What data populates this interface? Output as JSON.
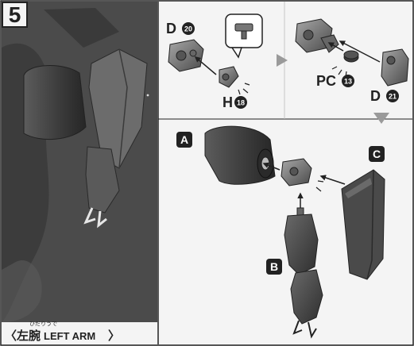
{
  "step": {
    "number": "5"
  },
  "title": {
    "ruby": "ひだりうで",
    "kanji": "左腕",
    "english": "LEFT ARM",
    "open_bracket": "〈",
    "close_bracket": "〉"
  },
  "parts": {
    "d20": {
      "letter": "D",
      "num": "20"
    },
    "h18": {
      "letter": "H",
      "num": "18"
    },
    "pc13": {
      "letter": "PC",
      "num": "13"
    },
    "d21": {
      "letter": "D",
      "num": "21"
    },
    "a": {
      "letter": "A"
    },
    "b": {
      "letter": "B"
    },
    "c": {
      "letter": "C"
    }
  },
  "colors": {
    "panel_left": "#4a4a4a",
    "part_gray": "#7a7a7a",
    "dark": "#2a2a2a",
    "accent_arrow": "#8a8a8a"
  }
}
